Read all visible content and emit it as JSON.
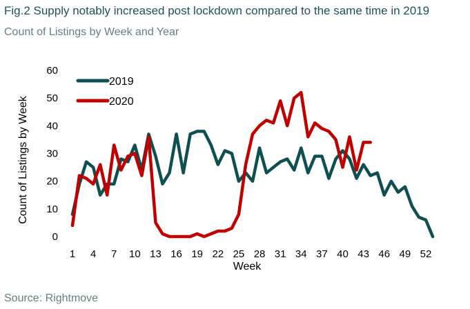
{
  "header": {
    "title": "Fig.2 Supply notably increased post lockdown compared to the same time in 2019",
    "subtitle": "Count of Listings by Week and Year"
  },
  "footer": {
    "source": "Source: Rightmove"
  },
  "colors": {
    "series_2019": "#0f4f4f",
    "series_2020": "#c00000"
  },
  "chart_data": {
    "type": "line",
    "xlabel": "Week",
    "ylabel": "Count of Listings by Week",
    "xlim": [
      1,
      53
    ],
    "ylim": [
      0,
      60
    ],
    "yticks": [
      0,
      10,
      20,
      30,
      40,
      50,
      60
    ],
    "xticks": [
      1,
      4,
      7,
      10,
      13,
      16,
      19,
      22,
      25,
      28,
      31,
      34,
      37,
      40,
      43,
      46,
      49,
      52
    ],
    "legend_position": "top-left",
    "series": [
      {
        "name": "2019",
        "color": "#0f4f4f",
        "x": [
          1,
          2,
          3,
          4,
          5,
          6,
          7,
          8,
          9,
          10,
          11,
          12,
          13,
          14,
          15,
          16,
          17,
          18,
          19,
          20,
          21,
          22,
          23,
          24,
          25,
          26,
          27,
          28,
          29,
          30,
          31,
          32,
          33,
          34,
          35,
          36,
          37,
          38,
          39,
          40,
          41,
          42,
          43,
          44,
          45,
          46,
          47,
          48,
          49,
          50,
          51,
          52,
          53
        ],
        "values": [
          8,
          19,
          27,
          25,
          15,
          19,
          19,
          28,
          27,
          33,
          24,
          37,
          29,
          19,
          23,
          37,
          23,
          37,
          38,
          38,
          33,
          26,
          31,
          30,
          20,
          23,
          20,
          32,
          23,
          25,
          27,
          28,
          24,
          32,
          23,
          29,
          29,
          21,
          28,
          31,
          28,
          21,
          26,
          22,
          23,
          15,
          20,
          16,
          18,
          11,
          7,
          6,
          0
        ]
      },
      {
        "name": "2020",
        "color": "#c00000",
        "x": [
          1,
          2,
          3,
          4,
          5,
          6,
          7,
          8,
          9,
          10,
          11,
          12,
          13,
          14,
          15,
          16,
          17,
          18,
          19,
          20,
          21,
          22,
          23,
          24,
          25,
          26,
          27,
          28,
          29,
          30,
          31,
          32,
          33,
          34,
          35,
          36,
          37,
          38,
          39,
          40,
          41,
          42,
          43,
          44
        ],
        "values": [
          4,
          22,
          21,
          19,
          26,
          15,
          33,
          24,
          29,
          30,
          22,
          36,
          5,
          1,
          0,
          0,
          0,
          0,
          1,
          0,
          1,
          2,
          2,
          3,
          8,
          26,
          37,
          40,
          42,
          41,
          49,
          40,
          50,
          52,
          36,
          41,
          39,
          38,
          35,
          25,
          36,
          24,
          34,
          34
        ]
      }
    ]
  }
}
